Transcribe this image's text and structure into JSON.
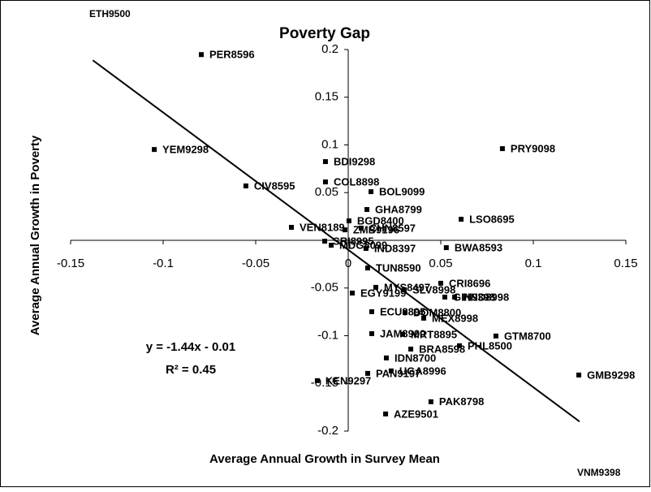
{
  "chart_data": {
    "type": "scatter",
    "title": "Poverty Gap",
    "x_label": "Average Annual Growth in Survey Mean",
    "y_label": "Average Annual Growth in Poverty",
    "color": "#000000",
    "labels": [
      "PER8596",
      "YEM9298",
      "CIV8595",
      "VEN8189",
      "COL8898",
      "BDI9298",
      "BOL9099",
      "GHA8799",
      "BGD8400",
      "ZMB9196",
      "CHN8597",
      "IND8397",
      "SRI8995",
      "MDG8099",
      "TUN8590",
      "BWA8593",
      "LSO8695",
      "PRY9098",
      "CRI8696",
      "MYS8497",
      "SLV8998",
      "GIN9398",
      "HND8998",
      "EGY9199",
      "ECU8895",
      "DOM8800",
      "MEX8998",
      "JAM8900",
      "MRT8895",
      "GTM8700",
      "PHL8500",
      "BRA8598",
      "IDN8700",
      "UGA8996",
      "PAN9197",
      "KEN9297",
      "GMB9298",
      "PAK8798",
      "AZE9501"
    ],
    "x": [
      -0.0794,
      -0.1048,
      -0.0553,
      -0.0307,
      -0.0123,
      -0.0123,
      0.0123,
      0.0101,
      0.0004,
      -0.0018,
      0.007,
      0.0096,
      -0.0127,
      -0.0092,
      0.0105,
      0.053,
      0.061,
      0.0833,
      0.05,
      0.0149,
      0.0303,
      0.0522,
      0.0575,
      0.0022,
      0.0127,
      0.0307,
      0.0408,
      0.0127,
      0.0294,
      0.0798,
      0.0601,
      0.0338,
      0.0206,
      0.0232,
      0.0105,
      -0.0167,
      0.1246,
      0.0447,
      0.0202
    ],
    "y": [
      0.1947,
      0.0952,
      0.057,
      0.0136,
      0.0612,
      0.0825,
      0.051,
      0.0323,
      0.0204,
      0.011,
      0.0128,
      -0.0085,
      -0.0009,
      -0.0051,
      -0.029,
      -0.0077,
      0.0221,
      0.0961,
      -0.045,
      -0.0493,
      -0.0519,
      -0.0595,
      -0.0595,
      -0.0553,
      -0.0748,
      -0.0757,
      -0.0816,
      -0.0978,
      -0.0986,
      -0.1003,
      -0.1105,
      -0.114,
      -0.1233,
      -0.1369,
      -0.1395,
      -0.1471,
      -0.1412,
      -0.1692,
      -0.182
    ],
    "annotations": [
      "ETH9500",
      "VNM9398"
    ],
    "trendline": {
      "slope": -1.44,
      "intercept": -0.01,
      "x_range": [
        -0.138,
        0.125
      ]
    },
    "equation": "y = -1.44x - 0.01",
    "r_squared": "R² = 0.45",
    "xlim": [
      -0.15,
      0.15
    ],
    "ylim": [
      -0.2,
      0.2
    ],
    "xticks": [
      -0.15,
      -0.1,
      -0.05,
      0,
      0.05,
      0.1,
      0.15
    ],
    "yticks": [
      -0.2,
      -0.15,
      -0.1,
      -0.05,
      0.05,
      0.1,
      0.15,
      0.2
    ]
  }
}
